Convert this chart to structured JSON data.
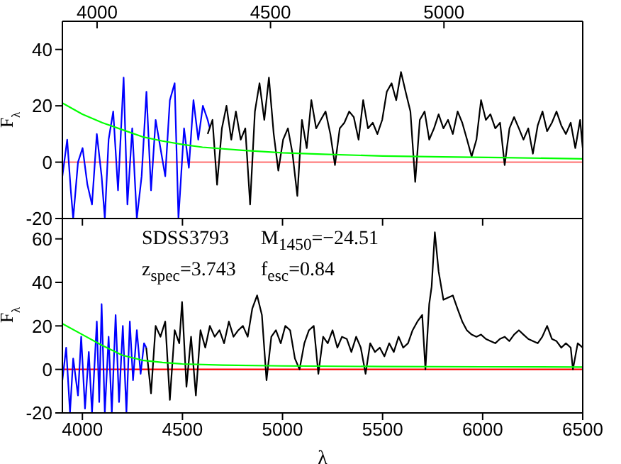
{
  "chart_data": [
    {
      "type": "line",
      "ylabel": "F$_{λ}$",
      "xlim": [
        3900,
        6500
      ],
      "xticks": [
        {
          "value": 4000,
          "label": null
        },
        {
          "value": 4500,
          "label": null
        },
        {
          "value": 5000,
          "label": null
        },
        {
          "value": 5500,
          "label": null
        },
        {
          "value": 6000,
          "label": null
        },
        {
          "value": 6500,
          "label": null
        }
      ],
      "x2lim": [
        3900,
        5400
      ],
      "x2ticks": [
        4000,
        4500,
        5000
      ],
      "ylim": [
        -20,
        50
      ],
      "yticks": [
        -20,
        0,
        20,
        40
      ],
      "tick_labels": "y",
      "series": [
        {
          "color": "#ff7f7f",
          "x": [
            3900,
            6500
          ],
          "values": [
            0,
            0
          ]
        },
        {
          "color": "#0000ff",
          "x": [
            3900,
            3924,
            3942,
            3954,
            3978,
            4001,
            4025,
            4048,
            4072,
            4096,
            4112,
            4131,
            4154,
            4178,
            4206,
            4225,
            4249,
            4272,
            4296,
            4320,
            4343,
            4366,
            4390,
            4414,
            4437,
            4461,
            4480,
            4508,
            4532,
            4555,
            4579,
            4602,
            4626,
            4637
          ],
          "values": [
            -5,
            8,
            -10,
            -20,
            0,
            5,
            -8,
            -15,
            10,
            -5,
            -20,
            8,
            18,
            -10,
            30,
            -15,
            12,
            -20,
            -5,
            25,
            -10,
            15,
            5,
            -5,
            22,
            28,
            -20,
            12,
            -2,
            22,
            8,
            20,
            15,
            12
          ]
        },
        {
          "color": "#000000",
          "x": [
            4626,
            4650,
            4673,
            4697,
            4720,
            4744,
            4767,
            4791,
            4814,
            4838,
            4862,
            4885,
            4909,
            4932,
            4956,
            4979,
            5003,
            5027,
            5050,
            5074,
            5097,
            5121,
            5144,
            5168,
            5191,
            5215,
            5239,
            5262,
            5286,
            5309,
            5333,
            5356,
            5380,
            5403,
            5427,
            5451,
            5474,
            5498,
            5521,
            5545,
            5568,
            5592,
            5615,
            5639,
            5663,
            5686,
            5710,
            5733,
            5757,
            5780,
            5804,
            5827,
            5851,
            5875,
            5898,
            5922,
            5945,
            5969,
            5992,
            6016,
            6039,
            6063,
            6087,
            6110,
            6134,
            6157,
            6181,
            6204,
            6228,
            6251,
            6275,
            6299,
            6322,
            6346,
            6369,
            6393,
            6416,
            6440,
            6463,
            6487,
            6500
          ],
          "values": [
            10,
            15,
            -8,
            12,
            20,
            8,
            18,
            8,
            12,
            -15,
            18,
            28,
            15,
            30,
            10,
            -3,
            8,
            12,
            3,
            -12,
            15,
            5,
            22,
            12,
            15,
            18,
            10,
            -1,
            12,
            14,
            18,
            16,
            8,
            22,
            12,
            14,
            10,
            15,
            25,
            28,
            22,
            32,
            25,
            18,
            -7,
            15,
            18,
            8,
            12,
            17,
            12,
            15,
            10,
            18,
            14,
            8,
            2,
            8,
            22,
            15,
            17,
            12,
            14,
            -1,
            12,
            16,
            12,
            8,
            12,
            3,
            13,
            18,
            11,
            14,
            18,
            13,
            10,
            14,
            5,
            15,
            5
          ]
        },
        {
          "color": "#00ff00",
          "x": [
            3900,
            4000,
            4100,
            4200,
            4300,
            4400,
            4500,
            4600,
            4800,
            5000,
            5200,
            5500,
            5800,
            6100,
            6500
          ],
          "values": [
            21,
            17,
            14,
            11.5,
            9,
            7.5,
            6.3,
            5.3,
            4.2,
            3.3,
            2.8,
            2.2,
            1.9,
            1.6,
            1.2
          ]
        }
      ]
    },
    {
      "type": "line",
      "xlabel": "λ",
      "ylabel": "F$_{λ}$",
      "xlim": [
        3900,
        6500
      ],
      "xticks": [
        4000,
        4500,
        5000,
        5500,
        6000,
        6500
      ],
      "ylim": [
        -20,
        70
      ],
      "yticks": [
        -20,
        0,
        20,
        40,
        60
      ],
      "annotations": [
        "SDSS3793",
        "M$_{1450}$=−24.51",
        "z$_{spec}$=3.743",
        "f$_{esc}$=0.84"
      ],
      "series": [
        {
          "color": "#ff0000",
          "x": [
            3900,
            6500
          ],
          "values": [
            0,
            0
          ]
        },
        {
          "color": "#0000ff",
          "x": [
            3900,
            3919,
            3938,
            3954,
            3978,
            3994,
            4013,
            4032,
            4048,
            4072,
            4084,
            4096,
            4112,
            4131,
            4147,
            4166,
            4183,
            4202,
            4220,
            4237,
            4253,
            4272,
            4291,
            4308,
            4319
          ],
          "values": [
            -5,
            10,
            -20,
            5,
            -12,
            15,
            -18,
            8,
            -20,
            22,
            -15,
            30,
            -20,
            15,
            -20,
            25,
            -15,
            20,
            -20,
            22,
            -5,
            18,
            -2,
            12,
            10
          ]
        },
        {
          "color": "#000000",
          "x": [
            4319,
            4343,
            4366,
            4390,
            4414,
            4437,
            4461,
            4484,
            4498,
            4520,
            4543,
            4567,
            4590,
            4614,
            4637,
            4661,
            4685,
            4708,
            4732,
            4755,
            4779,
            4802,
            4826,
            4849,
            4873,
            4897,
            4920,
            4944,
            4967,
            4991,
            5014,
            5038,
            5062,
            5085,
            5109,
            5132,
            5156,
            5179,
            5203,
            5226,
            5250,
            5274,
            5297,
            5321,
            5344,
            5368,
            5391,
            5415,
            5438,
            5462,
            5486,
            5509,
            5533,
            5556,
            5580,
            5603,
            5627,
            5650,
            5674,
            5698,
            5714,
            5733,
            5745,
            5761,
            5780,
            5804,
            5827,
            5851,
            5874,
            5898,
            5921,
            5945,
            5969,
            5992,
            6016,
            6039,
            6063,
            6086,
            6110,
            6133,
            6157,
            6181,
            6204,
            6228,
            6251,
            6275,
            6298,
            6322,
            6346,
            6369,
            6393,
            6416,
            6440,
            6451,
            6475,
            6500
          ],
          "values": [
            10,
            -11,
            20,
            15,
            22,
            -14,
            18,
            12,
            31,
            -8,
            15,
            -12,
            18,
            10,
            20,
            15,
            18,
            12,
            22,
            15,
            18,
            20,
            15,
            28,
            34,
            25,
            -5,
            15,
            18,
            12,
            20,
            18,
            5,
            0,
            12,
            18,
            20,
            -2,
            15,
            12,
            18,
            10,
            15,
            14,
            8,
            15,
            10,
            -2,
            12,
            8,
            10,
            6,
            12,
            8,
            15,
            10,
            12,
            18,
            22,
            25,
            0,
            30,
            38,
            63,
            45,
            32,
            33,
            34,
            28,
            22,
            18,
            16,
            15,
            16,
            14,
            13,
            12,
            14,
            15,
            13,
            16,
            18,
            16,
            14,
            13,
            12,
            15,
            20,
            14,
            13,
            10,
            12,
            10,
            0,
            12,
            10
          ]
        },
        {
          "color": "#00ff00",
          "x": [
            3900,
            4000,
            4100,
            4200,
            4300,
            4400,
            4500,
            4700,
            5000,
            5500,
            6000,
            6500
          ],
          "values": [
            21,
            16,
            11,
            6.5,
            4.2,
            3.2,
            2.5,
            2,
            1.6,
            1.3,
            1.2,
            1.1
          ]
        }
      ]
    }
  ]
}
